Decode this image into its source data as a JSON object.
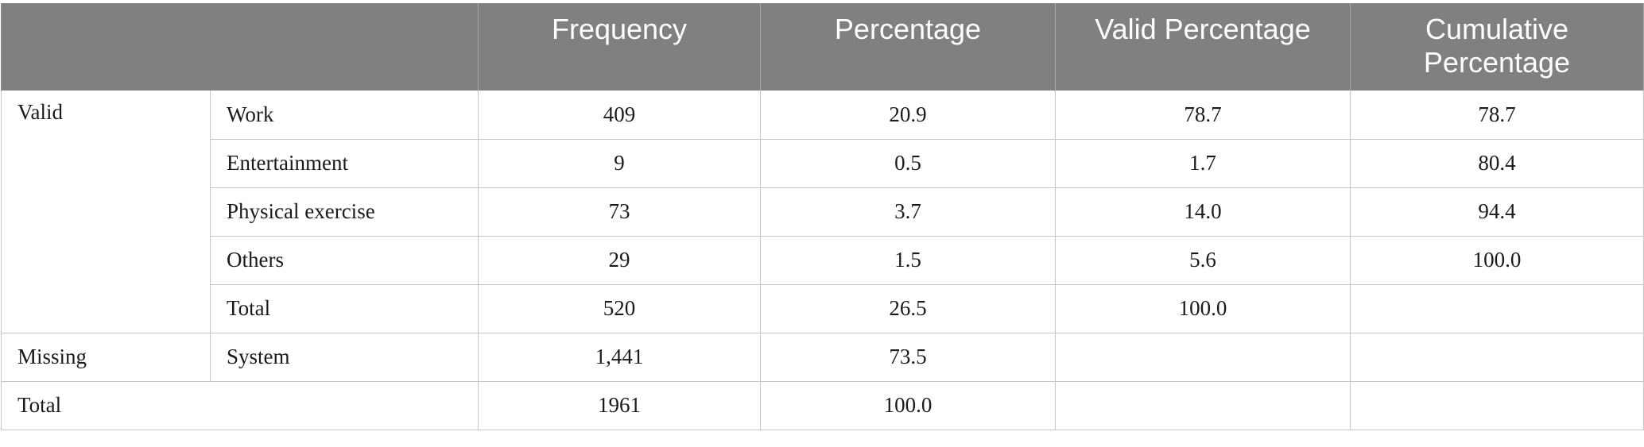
{
  "table": {
    "headers": {
      "frequency": "Frequency",
      "percentage": "Percentage",
      "valid_percentage": "Valid Percentage",
      "cumulative_percentage": "Cumulative Percentage"
    },
    "valid": {
      "group_label": "Valid",
      "rows": [
        {
          "label": "Work",
          "frequency": "409",
          "percentage": "20.9",
          "valid_percentage": "78.7",
          "cumulative_percentage": "78.7"
        },
        {
          "label": "Entertainment",
          "frequency": "9",
          "percentage": "0.5",
          "valid_percentage": "1.7",
          "cumulative_percentage": "80.4"
        },
        {
          "label": "Physical exercise",
          "frequency": "73",
          "percentage": "3.7",
          "valid_percentage": "14.0",
          "cumulative_percentage": "94.4"
        },
        {
          "label": "Others",
          "frequency": "29",
          "percentage": "1.5",
          "valid_percentage": "5.6",
          "cumulative_percentage": "100.0"
        },
        {
          "label": "Total",
          "frequency": "520",
          "percentage": "26.5",
          "valid_percentage": "100.0",
          "cumulative_percentage": ""
        }
      ]
    },
    "missing": {
      "group_label": "Missing",
      "label": "System",
      "frequency": "1,441",
      "percentage": "73.5",
      "valid_percentage": "",
      "cumulative_percentage": ""
    },
    "total": {
      "label": "Total",
      "frequency": "1961",
      "percentage": "100.0",
      "valid_percentage": "",
      "cumulative_percentage": ""
    }
  }
}
